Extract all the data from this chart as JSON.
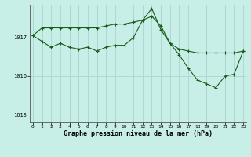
{
  "title": "Graphe pression niveau de la mer (hPa)",
  "background_color": "#c8eee8",
  "grid_color": "#aad4cc",
  "line_color": "#1a5c1a",
  "x_labels": [
    "0",
    "1",
    "2",
    "3",
    "4",
    "5",
    "6",
    "7",
    "8",
    "9",
    "10",
    "11",
    "12",
    "13",
    "14",
    "15",
    "16",
    "17",
    "18",
    "19",
    "20",
    "21",
    "22",
    "23"
  ],
  "x_values": [
    0,
    1,
    2,
    3,
    4,
    5,
    6,
    7,
    8,
    9,
    10,
    11,
    12,
    13,
    14,
    15,
    16,
    17,
    18,
    19,
    20,
    21,
    22,
    23
  ],
  "series1": [
    1017.05,
    1017.25,
    1017.25,
    1017.25,
    1017.25,
    1017.25,
    1017.25,
    1017.25,
    1017.3,
    1017.35,
    1017.35,
    1017.4,
    1017.45,
    1017.55,
    1017.3,
    1016.85,
    1016.7,
    1016.65,
    1016.6,
    1016.6,
    1016.6,
    1016.6,
    1016.6,
    1016.65
  ],
  "series2": [
    1017.05,
    1016.9,
    1016.75,
    1016.85,
    1016.75,
    1016.7,
    1016.75,
    1016.65,
    1016.75,
    1016.8,
    1016.8,
    1017.0,
    1017.45,
    1017.75,
    1017.2,
    1016.85,
    1016.55,
    1016.2,
    1015.9,
    1015.8,
    1015.7,
    1016.0,
    1016.05,
    1016.65
  ],
  "ylim_min": 1014.8,
  "ylim_max": 1017.85,
  "yticks": [
    1015,
    1016,
    1017
  ],
  "ylabel_fontsize": 5.0,
  "xlabel_fontsize": 6.0,
  "tick_fontsize": 4.5
}
